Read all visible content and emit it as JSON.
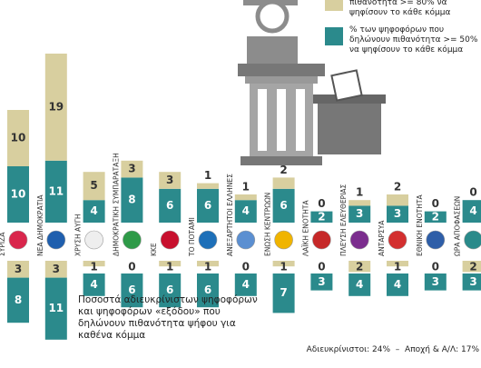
{
  "chart_data": {
    "type": "bar",
    "categories": [
      "ΣΥΡΙΖΑ",
      "ΝΕΑ ΔΗΜΟΚΡΑΤΙΑ",
      "ΧΡΥΣΗ ΑΥΓΗ",
      "ΔΗΜΟΚΡΑΤΙΚΗ ΣΥΜΠΑΡΑΤΑΞΗ",
      "ΚΚΕ",
      "ΤΟ ΠΟΤΑΜΙ",
      "ΑΝΕΞΑΡΤΗΤΟΙ ΕΛΛΗΝΕΣ",
      "ΕΝΩΣΗ ΚΕΝΤΡΩΩΝ",
      "ΛΑΪΚΗ ΕΝΟΤΗΤΑ",
      "ΠΛΕΥΣΗ ΕΛΕΥΘΕΡΙΑΣ",
      "ΑΝΤΑΡΣΥΑ",
      "ΕΘΝΙΚΗ ΕΝΟΤΗΤΑ",
      "ΩΡΑ ΑΠΟΦΑΣΕΩΝ"
    ],
    "logo_colors": [
      "#d9264c",
      "#1f5fae",
      "#eeeeee",
      "#2e9a48",
      "#c8102e",
      "#1d6fb8",
      "#5b8fd1",
      "#f0b400",
      "#c62828",
      "#7b2d8e",
      "#d32f2f",
      "#2e5ea8",
      "#2a8a8a"
    ],
    "series": [
      {
        "name": "% των ψηφοφόρων που δηλώνουν πιθανότητα >= 50% να ψηφίσουν το κάθε κόμμα",
        "color": "#2b8a8c",
        "values": [
          10,
          11,
          4,
          8,
          6,
          6,
          4,
          6,
          2,
          3,
          3,
          2,
          4
        ]
      },
      {
        "name": "πιθανότητα >= 80% να ψηφίσουν το κάθε κόμμα",
        "color": "#d8cf9f",
        "values": [
          10,
          19,
          5,
          3,
          3,
          1,
          1,
          2,
          0,
          1,
          2,
          0,
          0
        ]
      }
    ],
    "lower_note": "Ποσοστά αδιευκρίνιστων ψηφοφόρων και ψηφοφόρων «εξόδου» που δηλώνουν πιθανότητα ψήφου για καθένα κόμμα",
    "lower_series": [
      {
        "color": "#d8cf9f",
        "values": [
          3,
          3,
          1,
          0,
          1,
          1,
          0,
          1,
          0,
          2,
          1,
          0,
          2
        ]
      },
      {
        "color": "#2b8a8c",
        "values": [
          8,
          11,
          4,
          6,
          6,
          6,
          4,
          7,
          3,
          4,
          4,
          3,
          3
        ]
      }
    ],
    "footnotes": [
      "Αδιευκρίνιστοι: 24%",
      "Αποχή & Α/Λ: 17%"
    ]
  }
}
